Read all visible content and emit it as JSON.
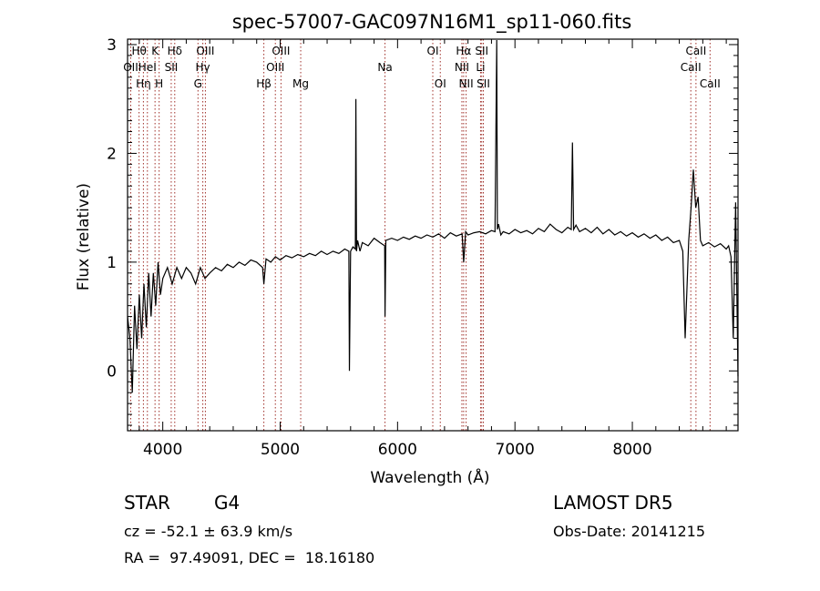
{
  "chart_data": {
    "type": "line",
    "title": "spec-57007-GAC097N16M1_sp11-060.fits",
    "xlabel": "Wavelength (Å)",
    "ylabel": "Flux (relative)",
    "xlim": [
      3700,
      8900
    ],
    "ylim": [
      -0.55,
      3.05
    ],
    "xticks": [
      4000,
      5000,
      6000,
      7000,
      8000
    ],
    "yticks": [
      0,
      1,
      2,
      3
    ],
    "series": [
      {
        "x": [
          3700,
          3720,
          3740,
          3760,
          3780,
          3800,
          3820,
          3840,
          3860,
          3880,
          3900,
          3920,
          3940,
          3960,
          3980,
          4000,
          4040,
          4080,
          4120,
          4160,
          4200,
          4240,
          4280,
          4320,
          4360,
          4400,
          4450,
          4500,
          4550,
          4600,
          4650,
          4700,
          4750,
          4800,
          4850,
          4861,
          4880,
          4920,
          4960,
          5000,
          5050,
          5100,
          5150,
          5200,
          5250,
          5300,
          5350,
          5400,
          5450,
          5500,
          5550,
          5585,
          5590,
          5600,
          5620,
          5640,
          5645,
          5650,
          5660,
          5680,
          5700,
          5750,
          5800,
          5850,
          5890,
          5893,
          5900,
          5950,
          6000,
          6050,
          6100,
          6150,
          6200,
          6250,
          6300,
          6350,
          6400,
          6450,
          6500,
          6550,
          6563,
          6580,
          6600,
          6650,
          6700,
          6750,
          6800,
          6830,
          6845,
          6850,
          6860,
          6880,
          6900,
          6950,
          7000,
          7050,
          7100,
          7150,
          7200,
          7250,
          7300,
          7350,
          7400,
          7450,
          7480,
          7490,
          7500,
          7520,
          7550,
          7600,
          7650,
          7700,
          7750,
          7800,
          7850,
          7900,
          7950,
          8000,
          8050,
          8100,
          8150,
          8200,
          8250,
          8300,
          8350,
          8400,
          8430,
          8450,
          8480,
          8500,
          8520,
          8540,
          8560,
          8580,
          8600,
          8650,
          8700,
          8750,
          8800,
          8820,
          8840,
          8860,
          8880,
          8900
        ],
        "y": [
          0.5,
          0.3,
          -0.2,
          0.6,
          0.2,
          0.7,
          0.3,
          0.8,
          0.4,
          0.9,
          0.5,
          0.9,
          0.6,
          1.0,
          0.7,
          0.85,
          0.95,
          0.8,
          0.95,
          0.85,
          0.95,
          0.9,
          0.8,
          0.95,
          0.85,
          0.9,
          0.95,
          0.92,
          0.98,
          0.95,
          1.0,
          0.97,
          1.02,
          1.0,
          0.95,
          0.8,
          1.03,
          1.0,
          1.05,
          1.02,
          1.06,
          1.04,
          1.07,
          1.05,
          1.08,
          1.06,
          1.1,
          1.07,
          1.1,
          1.08,
          1.12,
          1.1,
          0.0,
          1.1,
          1.14,
          1.12,
          2.5,
          1.1,
          1.2,
          1.1,
          1.18,
          1.15,
          1.22,
          1.18,
          1.15,
          0.5,
          1.2,
          1.22,
          1.2,
          1.23,
          1.21,
          1.24,
          1.22,
          1.25,
          1.23,
          1.26,
          1.22,
          1.27,
          1.24,
          1.26,
          1.0,
          1.28,
          1.25,
          1.27,
          1.28,
          1.26,
          1.29,
          1.28,
          3.05,
          1.3,
          1.35,
          1.25,
          1.28,
          1.26,
          1.3,
          1.27,
          1.29,
          1.26,
          1.31,
          1.28,
          1.35,
          1.3,
          1.27,
          1.32,
          1.3,
          2.1,
          1.3,
          1.34,
          1.28,
          1.31,
          1.27,
          1.32,
          1.26,
          1.3,
          1.25,
          1.28,
          1.24,
          1.27,
          1.23,
          1.26,
          1.22,
          1.25,
          1.2,
          1.23,
          1.18,
          1.2,
          1.1,
          0.3,
          1.2,
          1.5,
          1.85,
          1.5,
          1.6,
          1.2,
          1.15,
          1.18,
          1.14,
          1.17,
          1.12,
          1.15,
          1.05,
          0.3,
          1.55,
          -0.05
        ]
      }
    ],
    "spectral_lines": [
      {
        "wavelength": 3727,
        "label": "OII",
        "row": 2
      },
      {
        "wavelength": 3798,
        "label": "Hθ",
        "row": 1
      },
      {
        "wavelength": 3835,
        "label": "Hη",
        "row": 3
      },
      {
        "wavelength": 3869,
        "label": "HeI",
        "row": 2
      },
      {
        "wavelength": 3934,
        "label": "K",
        "row": 1
      },
      {
        "wavelength": 3969,
        "label": "H",
        "row": 3
      },
      {
        "wavelength": 4102,
        "label": "Hδ",
        "row": 1
      },
      {
        "wavelength": 4072,
        "label": "SII",
        "row": 2
      },
      {
        "wavelength": 4300,
        "label": "G",
        "row": 3
      },
      {
        "wavelength": 4341,
        "label": "Hγ",
        "row": 2
      },
      {
        "wavelength": 4363,
        "label": "OIII",
        "row": 1
      },
      {
        "wavelength": 4861,
        "label": "Hβ",
        "row": 3
      },
      {
        "wavelength": 4959,
        "label": "OIII",
        "row": 2
      },
      {
        "wavelength": 5007,
        "label": "OIII",
        "row": 1
      },
      {
        "wavelength": 5175,
        "label": "Mg",
        "row": 3
      },
      {
        "wavelength": 5893,
        "label": "Na",
        "row": 2
      },
      {
        "wavelength": 6300,
        "label": "OI",
        "row": 1
      },
      {
        "wavelength": 6364,
        "label": "OI",
        "row": 3
      },
      {
        "wavelength": 6548,
        "label": "NII",
        "row": 2
      },
      {
        "wavelength": 6563,
        "label": "Hα",
        "row": 1
      },
      {
        "wavelength": 6584,
        "label": "NII",
        "row": 3
      },
      {
        "wavelength": 6707,
        "label": "Li",
        "row": 2
      },
      {
        "wavelength": 6717,
        "label": "SII",
        "row": 1
      },
      {
        "wavelength": 6731,
        "label": "SII",
        "row": 3
      },
      {
        "wavelength": 8498,
        "label": "CaII",
        "row": 2
      },
      {
        "wavelength": 8542,
        "label": "CaII",
        "row": 1
      },
      {
        "wavelength": 8662,
        "label": "CaII",
        "row": 3
      }
    ]
  },
  "info": {
    "object_class": "STAR",
    "subclass": "G4",
    "survey": "LAMOST DR5",
    "redshift": "cz = -52.1 ± 63.9 km/s",
    "obs_date": "Obs-Date: 20141215",
    "coords": "RA =  97.49091, DEC =  18.16180"
  },
  "colors": {
    "spectrum": "#000000",
    "line_markers": "#a0302a",
    "axes": "#000000",
    "background": "#ffffff"
  }
}
